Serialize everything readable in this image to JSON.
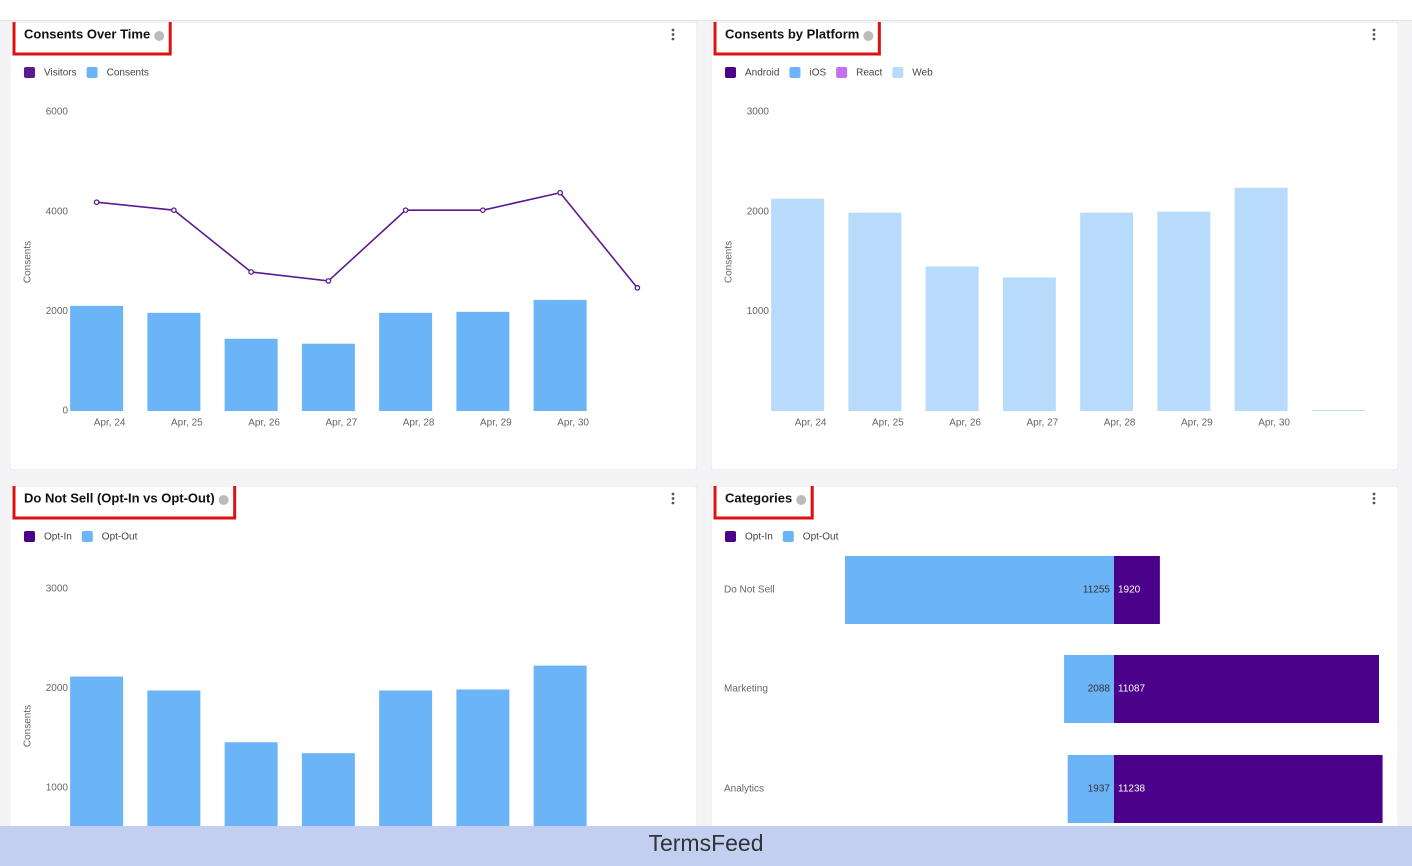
{
  "chart_data": [
    {
      "type": "combo",
      "title": "Consents Over Time",
      "y_label": "Consents",
      "categories": [
        "Apr, 24",
        "Apr, 25",
        "Apr, 26",
        "Apr, 27",
        "Apr, 28",
        "Apr, 29",
        "Apr, 30",
        null
      ],
      "series": [
        {
          "name": "Visitors",
          "color": "#5b1a8f",
          "kind": "line",
          "values": [
            4190,
            4030,
            2790,
            2610,
            4030,
            4030,
            4380,
            2470
          ]
        },
        {
          "name": "Consents",
          "color": "#6cb4f8",
          "kind": "bar",
          "values": [
            2110,
            1970,
            1450,
            1350,
            1970,
            1990,
            2230,
            0
          ]
        }
      ],
      "ylim": [
        0,
        6000
      ],
      "yticks": [
        0,
        2000,
        4000,
        6000
      ]
    },
    {
      "type": "stacked-bar",
      "title": "Consents by Platform",
      "y_label": "Consents",
      "categories": [
        "Apr, 24",
        "Apr, 25",
        "Apr, 26",
        "Apr, 27",
        "Apr, 28",
        "Apr, 29",
        "Apr, 30",
        null
      ],
      "series": [
        {
          "name": "Android",
          "color": "#4b0089",
          "values": [
            0,
            0,
            0,
            0,
            0,
            0,
            0,
            0
          ]
        },
        {
          "name": "iOS",
          "color": "#6cb4f8",
          "values": [
            0,
            0,
            0,
            0,
            0,
            0,
            0,
            0
          ]
        },
        {
          "name": "React",
          "color": "#c36ff0",
          "values": [
            0,
            0,
            0,
            0,
            0,
            0,
            0,
            0
          ]
        },
        {
          "name": "Web",
          "color": "#b8dbfb",
          "values": [
            2130,
            1990,
            1450,
            1340,
            1990,
            2000,
            2240,
            10
          ]
        }
      ],
      "ylim": [
        0,
        3000
      ],
      "yticks": [
        1000,
        2000,
        3000
      ]
    },
    {
      "type": "stacked-bar",
      "title": "Do Not Sell (Opt-In vs Opt-Out)",
      "y_label": "Consents",
      "series": [
        {
          "name": "Opt-In",
          "color": "#4b0089",
          "values": [
            0,
            0,
            0,
            0,
            0,
            0,
            0
          ]
        },
        {
          "name": "Opt-Out",
          "color": "#6cb4f8",
          "values": [
            2120,
            1980,
            1460,
            1350,
            1980,
            1990,
            2230
          ]
        }
      ],
      "ylim": [
        0,
        3000
      ],
      "yticks": [
        1000,
        2000,
        3000
      ]
    },
    {
      "type": "diverging-bar",
      "title": "Categories",
      "categories": [
        "Do Not Sell",
        "Marketing",
        "Analytics"
      ],
      "series": [
        {
          "name": "Opt-In",
          "color": "#4b0089",
          "values": [
            1920,
            11087,
            11238
          ]
        },
        {
          "name": "Opt-Out",
          "color": "#6cb4f8",
          "values": [
            11255,
            2088,
            1937
          ]
        }
      ]
    }
  ],
  "footer": "TermsFeed"
}
